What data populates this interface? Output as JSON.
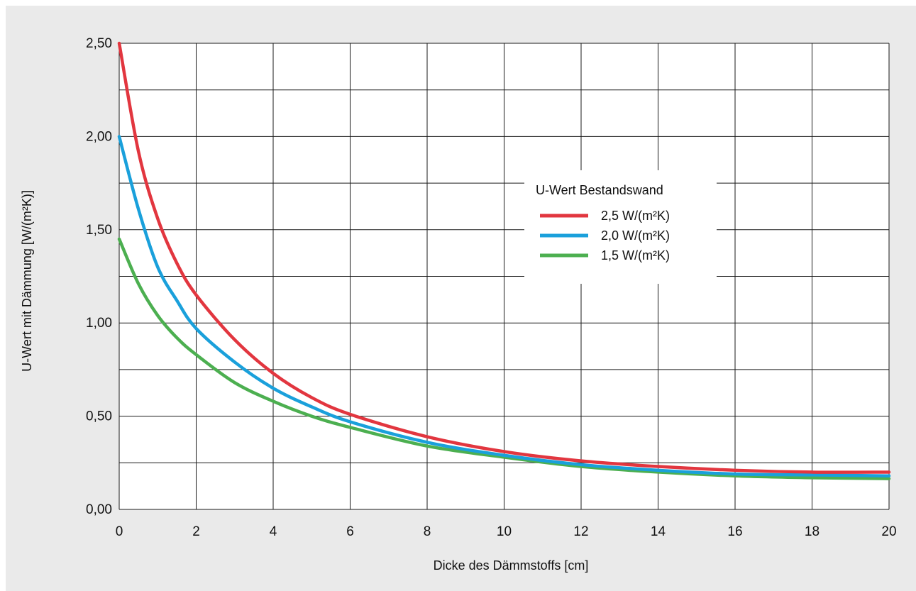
{
  "chart_data": {
    "type": "line",
    "title": "",
    "xlabel": "Dicke des Dämmstoffs [cm]",
    "ylabel": "U-Wert mit Dämmung [W/(m²K)]",
    "xlim": [
      0,
      20
    ],
    "ylim": [
      0,
      2.5
    ],
    "x_ticks": [
      "0",
      "2",
      "4",
      "6",
      "8",
      "10",
      "12",
      "14",
      "16",
      "18",
      "20"
    ],
    "y_ticks": [
      "0,00",
      "0,50",
      "1,00",
      "1,50",
      "2,00",
      "2,50"
    ],
    "grid": true,
    "legend": {
      "title": "U-Wert Bestandswand",
      "placement": "center-right"
    },
    "series": [
      {
        "name": "2,5 W/(m²K)",
        "color": "#e2363f",
        "x": [
          0,
          0.5,
          1,
          1.5,
          2,
          3,
          4,
          5,
          6,
          8,
          10,
          12,
          14,
          16,
          18,
          20
        ],
        "y": [
          2.5,
          1.92,
          1.56,
          1.32,
          1.15,
          0.91,
          0.73,
          0.6,
          0.51,
          0.39,
          0.31,
          0.26,
          0.23,
          0.21,
          0.2,
          0.2
        ]
      },
      {
        "name": "2,0 W/(m²K)",
        "color": "#1aa0db",
        "x": [
          0,
          0.5,
          1,
          1.5,
          2,
          3,
          4,
          5,
          6,
          8,
          10,
          12,
          14,
          16,
          18,
          20
        ],
        "y": [
          2.0,
          1.61,
          1.3,
          1.12,
          0.97,
          0.79,
          0.65,
          0.55,
          0.47,
          0.36,
          0.29,
          0.24,
          0.21,
          0.19,
          0.185,
          0.18
        ]
      },
      {
        "name": "1,5 W/(m²K)",
        "color": "#4caf50",
        "x": [
          0,
          0.5,
          1,
          1.5,
          2,
          3,
          4,
          5,
          6,
          8,
          10,
          12,
          14,
          16,
          18,
          20
        ],
        "y": [
          1.45,
          1.21,
          1.04,
          0.92,
          0.83,
          0.68,
          0.58,
          0.5,
          0.44,
          0.34,
          0.28,
          0.23,
          0.2,
          0.18,
          0.17,
          0.165
        ]
      }
    ]
  }
}
